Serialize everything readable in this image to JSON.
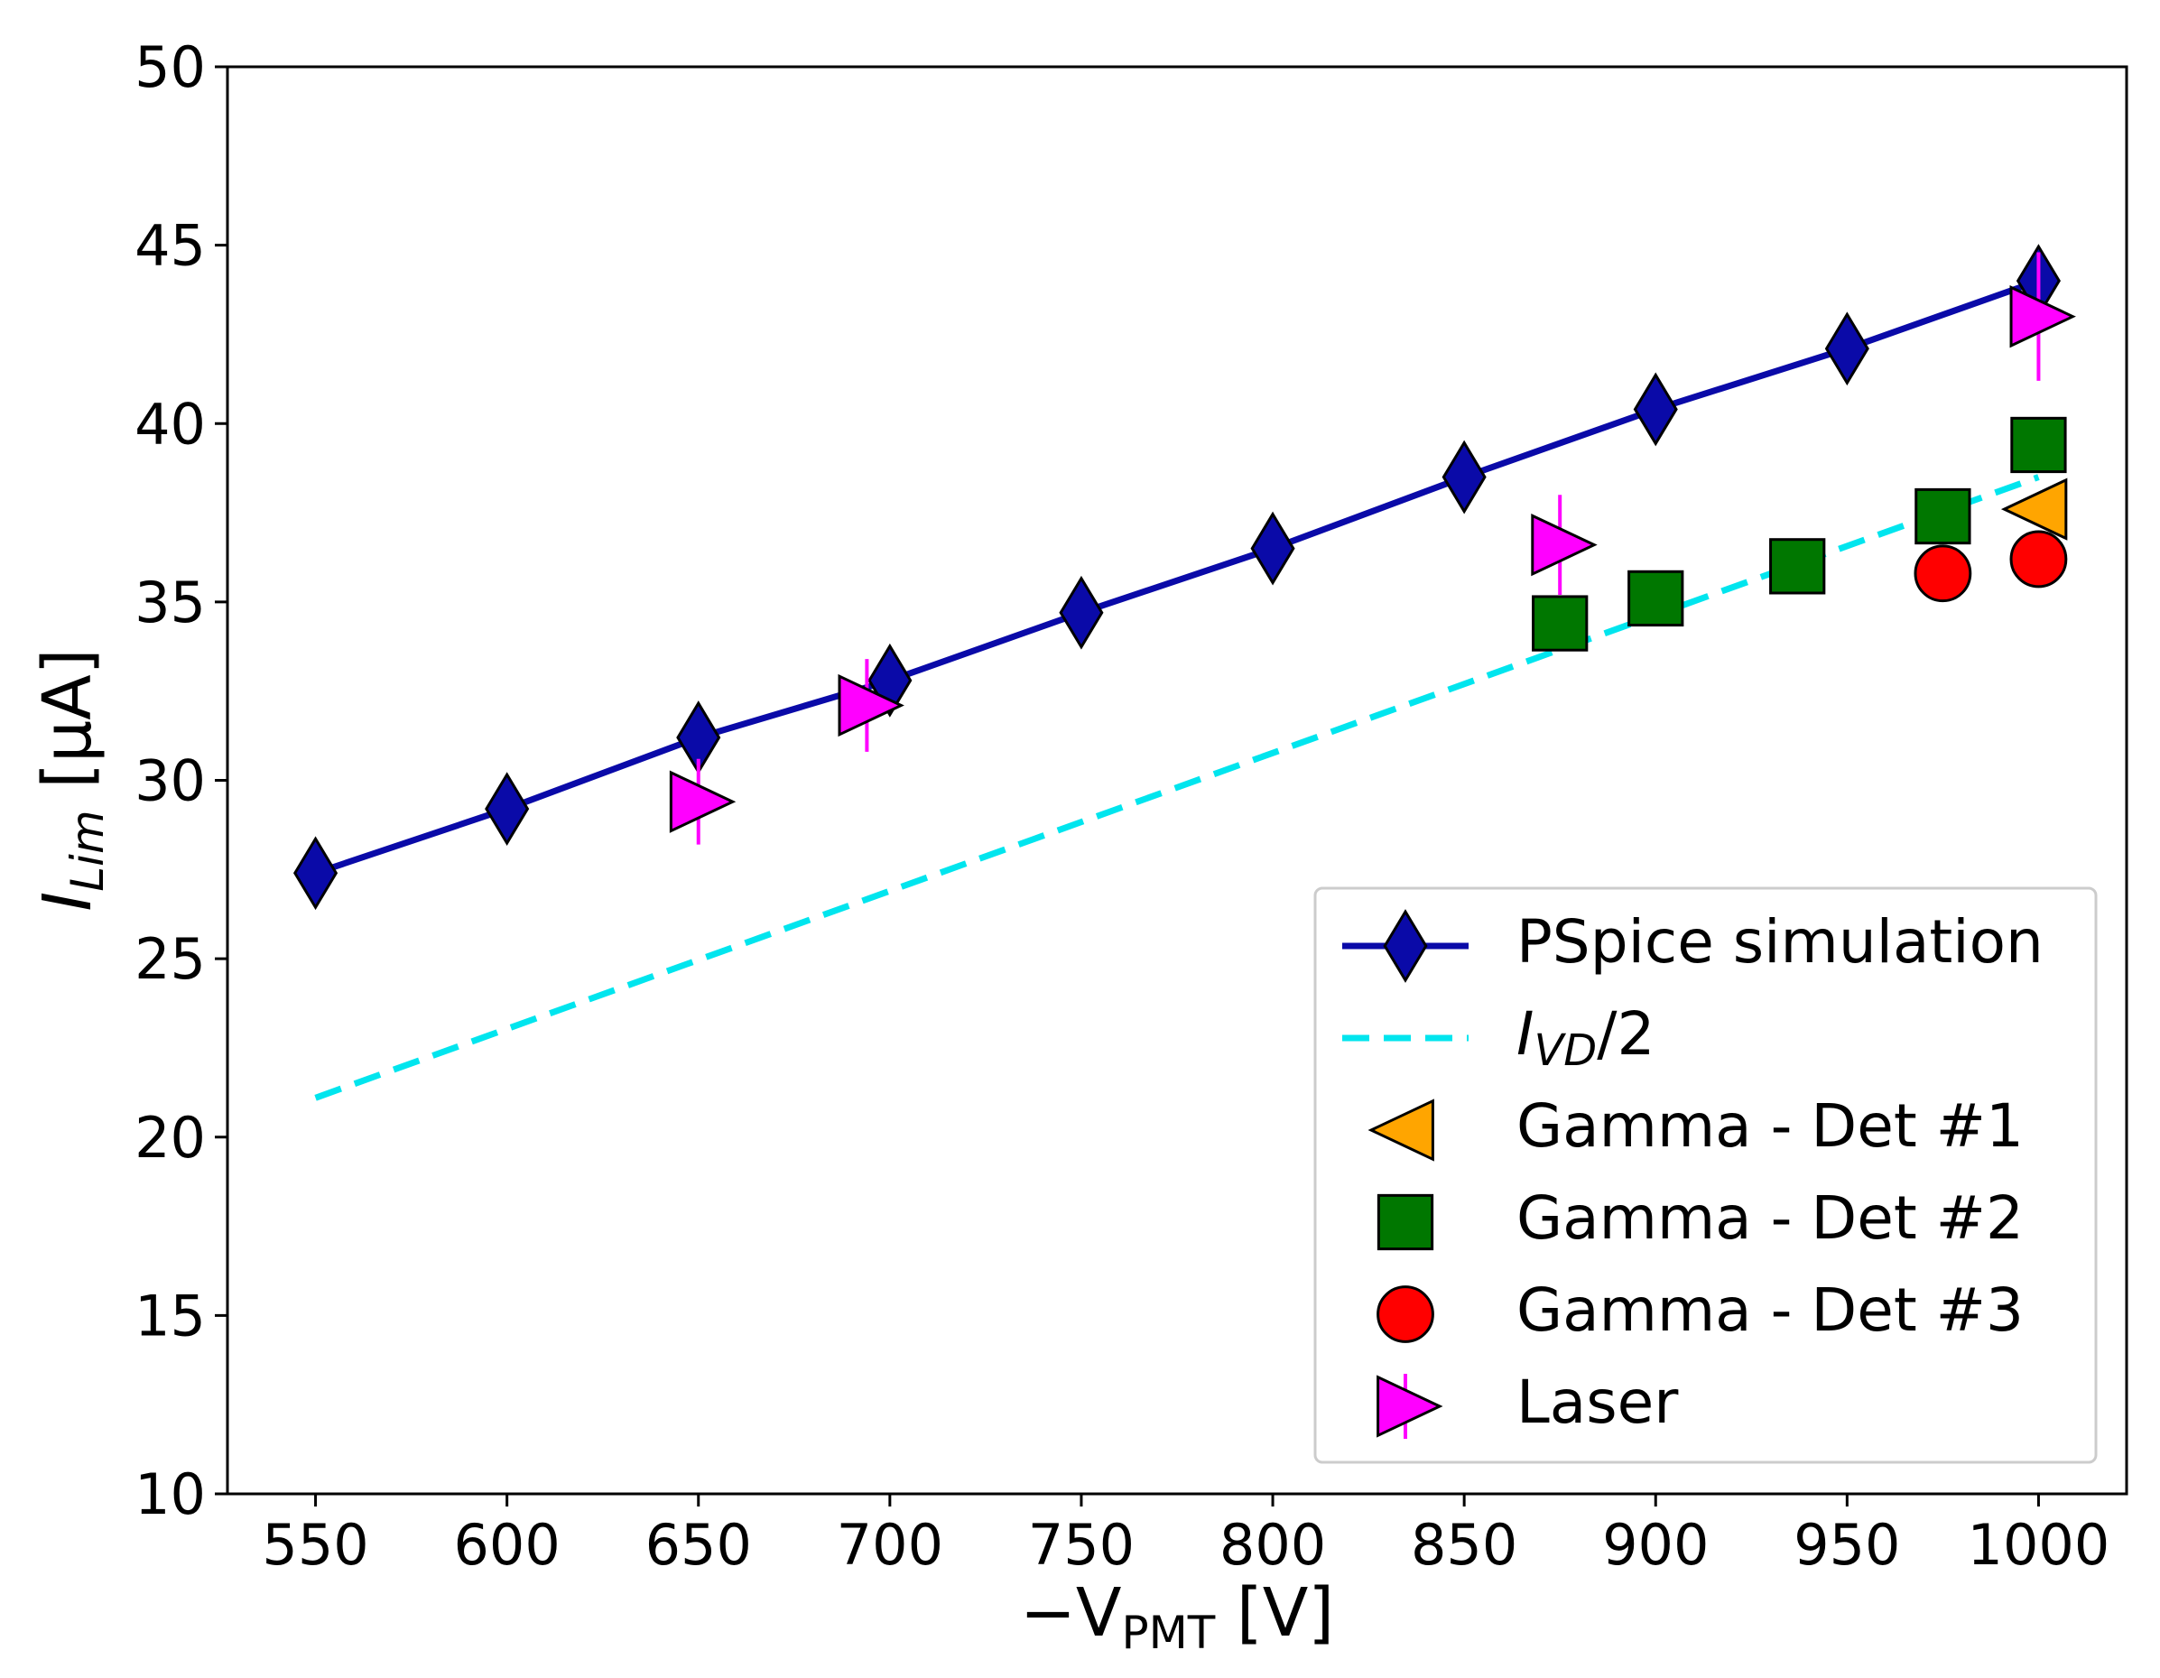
{
  "chart_data": {
    "type": "scatter",
    "title": "",
    "xlabel": {
      "prefix": "−V",
      "sub": "PMT",
      "suffix": " [V]"
    },
    "ylabel": {
      "prefix": "I",
      "sub": "Lim",
      "suffix": " [μA]"
    },
    "xlim": [
      527,
      1023
    ],
    "ylim": [
      10,
      50
    ],
    "xticks": [
      550,
      600,
      650,
      700,
      750,
      800,
      850,
      900,
      950,
      1000
    ],
    "yticks": [
      10,
      15,
      20,
      25,
      30,
      35,
      40,
      45,
      50
    ],
    "grid": false,
    "legend_position": "lower-right",
    "series": [
      {
        "name": "PSpice simulation",
        "marker": "diamond",
        "line": "solid",
        "color": "#0a0aa8",
        "points": [
          [
            550,
            27.4
          ],
          [
            600,
            29.2
          ],
          [
            650,
            31.2
          ],
          [
            700,
            32.8
          ],
          [
            750,
            34.7
          ],
          [
            800,
            36.5
          ],
          [
            850,
            38.5
          ],
          [
            900,
            40.4
          ],
          [
            950,
            42.1
          ],
          [
            1000,
            44.0
          ]
        ]
      },
      {
        "name": "I_VD/2",
        "legend_label": {
          "prefix": "I",
          "sub": "VD",
          "suffix": "/2"
        },
        "marker": "none",
        "line": "dashed",
        "color": "#00e5ee",
        "points": [
          [
            550,
            21.1
          ],
          [
            1000,
            38.5
          ]
        ]
      },
      {
        "name": "Gamma - Det #1",
        "marker": "triangle-left",
        "line": "none",
        "color": "#ffa500",
        "points": [
          [
            1000,
            37.6
          ]
        ]
      },
      {
        "name": "Gamma - Det #2",
        "marker": "square",
        "line": "none",
        "color": "#007700",
        "points": [
          [
            875,
            34.4
          ],
          [
            900,
            35.1
          ],
          [
            937,
            36.0
          ],
          [
            975,
            37.4
          ],
          [
            1000,
            39.4
          ]
        ]
      },
      {
        "name": "Gamma - Det #3",
        "marker": "circle",
        "line": "none",
        "color": "#ff0000",
        "points": [
          [
            975,
            35.8
          ],
          [
            1000,
            36.2
          ]
        ]
      },
      {
        "name": "Laser",
        "marker": "triangle-right",
        "line": "none",
        "color": "#ff00ff",
        "points": [
          {
            "x": 650,
            "y": 29.4,
            "yerr": 1.2
          },
          {
            "x": 694,
            "y": 32.1,
            "yerr": 1.3
          },
          {
            "x": 875,
            "y": 36.6,
            "yerr": 1.4
          },
          {
            "x": 1000,
            "y": 43.0,
            "yerr": 1.8
          }
        ]
      }
    ]
  }
}
